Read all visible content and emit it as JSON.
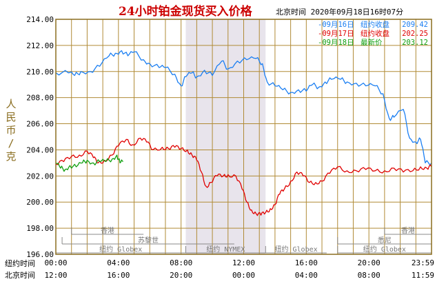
{
  "chart_data": {
    "type": "line",
    "title": "24小时铂金现货买入价格",
    "subtitle": "北京时间  2020年09月18日16时07分",
    "ylabel": "人民币/克",
    "ylim": [
      196,
      214
    ],
    "yticks": [
      "214.00",
      "212.00",
      "210.00",
      "208.00",
      "206.00",
      "204.00",
      "202.00",
      "200.00",
      "198.00",
      "196.00"
    ],
    "x_range_hours": [
      0,
      24
    ],
    "x_row_labels": [
      "纽约时间",
      "北京时间"
    ],
    "x_ticks_ny": [
      "00:00",
      "04:00",
      "08:00",
      "12:00",
      "16:00",
      "20:00",
      "23:59"
    ],
    "x_ticks_bj": [
      "12:00",
      "16:00",
      "20:00",
      "00:00",
      "04:00",
      "08:00",
      "11:59"
    ],
    "highlight_band_hours": [
      8.3,
      13.4
    ],
    "colors": {
      "plot_border": "#8a6d1f",
      "grid": "#b08a35",
      "band": "#e8e4ec",
      "title": "#cc0000",
      "axis_text": "#000000",
      "ylabel": "#8a6d1f"
    },
    "legend": [
      {
        "label": "09月16日",
        "desc": "纽约收盘",
        "value": "209.42",
        "color": "#1a7ef2"
      },
      {
        "label": "09月17日",
        "desc": "纽约收盘",
        "value": "202.25",
        "color": "#e00000"
      },
      {
        "label": "09月18日",
        "desc": "最新价",
        "value": "203.12",
        "color": "#10a010"
      }
    ],
    "markets": [
      {
        "name": "香港",
        "start": 1.0,
        "end": 5.6,
        "row": 0
      },
      {
        "name": "香港",
        "start": 21.0,
        "end": 24.0,
        "row": 0
      },
      {
        "name": "苏黎世",
        "start": 0.4,
        "end": 11.4,
        "row": 1
      },
      {
        "name": "悉尼",
        "start": 18.0,
        "end": 24.0,
        "row": 1
      },
      {
        "name": "纽约 Globex",
        "start": 0.0,
        "end": 8.3,
        "row": 2
      },
      {
        "name": "纽约 NYMEX",
        "start": 8.3,
        "end": 13.4,
        "row": 2
      },
      {
        "name": "纽约 Globex",
        "start": 13.4,
        "end": 17.3,
        "row": 2
      },
      {
        "name": "纽约 Globex",
        "start": 18.0,
        "end": 24.0,
        "row": 2
      }
    ],
    "series": [
      {
        "name": "09月16日",
        "color": "#1a7ef2",
        "points": [
          [
            0.0,
            209.9
          ],
          [
            0.8,
            209.9
          ],
          [
            1.2,
            209.7
          ],
          [
            1.6,
            210.0
          ],
          [
            2.2,
            210.0
          ],
          [
            2.8,
            210.4
          ],
          [
            3.4,
            211.2
          ],
          [
            3.8,
            211.4
          ],
          [
            4.2,
            211.6
          ],
          [
            4.6,
            211.2
          ],
          [
            5.0,
            211.5
          ],
          [
            5.6,
            210.9
          ],
          [
            6.0,
            210.6
          ],
          [
            6.6,
            210.3
          ],
          [
            7.0,
            210.3
          ],
          [
            7.6,
            209.8
          ],
          [
            8.0,
            208.9
          ],
          [
            8.3,
            209.6
          ],
          [
            8.7,
            209.9
          ],
          [
            9.0,
            209.6
          ],
          [
            9.5,
            210.1
          ],
          [
            10.0,
            209.7
          ],
          [
            10.6,
            210.8
          ],
          [
            11.0,
            210.2
          ],
          [
            11.6,
            210.8
          ],
          [
            12.2,
            210.9
          ],
          [
            12.8,
            211.0
          ],
          [
            13.2,
            210.6
          ],
          [
            13.5,
            209.2
          ],
          [
            14.0,
            208.9
          ],
          [
            14.5,
            208.6
          ],
          [
            15.0,
            208.4
          ],
          [
            15.5,
            208.6
          ],
          [
            16.0,
            208.5
          ],
          [
            16.4,
            209.0
          ],
          [
            16.8,
            208.8
          ],
          [
            17.2,
            209.2
          ],
          [
            17.6,
            209.4
          ],
          [
            18.2,
            209.4
          ],
          [
            18.6,
            209.2
          ],
          [
            19.2,
            209.1
          ],
          [
            19.8,
            208.9
          ],
          [
            20.4,
            208.9
          ],
          [
            20.9,
            208.3
          ],
          [
            21.3,
            206.4
          ],
          [
            21.6,
            206.5
          ],
          [
            22.2,
            207.1
          ],
          [
            22.6,
            204.9
          ],
          [
            23.0,
            204.6
          ],
          [
            23.3,
            204.8
          ],
          [
            23.6,
            203.0
          ],
          [
            24.0,
            203.0
          ]
        ]
      },
      {
        "name": "09月17日",
        "color": "#e00000",
        "points": [
          [
            0.0,
            202.9
          ],
          [
            0.5,
            203.1
          ],
          [
            1.0,
            203.5
          ],
          [
            1.5,
            203.6
          ],
          [
            2.0,
            203.9
          ],
          [
            2.4,
            203.4
          ],
          [
            2.7,
            203.0
          ],
          [
            3.1,
            203.2
          ],
          [
            3.6,
            203.6
          ],
          [
            4.0,
            204.3
          ],
          [
            4.5,
            204.8
          ],
          [
            4.9,
            204.4
          ],
          [
            5.4,
            204.9
          ],
          [
            5.8,
            204.6
          ],
          [
            6.2,
            204.0
          ],
          [
            6.8,
            204.2
          ],
          [
            7.2,
            204.1
          ],
          [
            7.6,
            204.2
          ],
          [
            8.0,
            204.1
          ],
          [
            8.4,
            204.0
          ],
          [
            8.7,
            203.6
          ],
          [
            9.0,
            203.2
          ],
          [
            9.3,
            202.3
          ],
          [
            9.6,
            201.2
          ],
          [
            9.9,
            201.5
          ],
          [
            10.3,
            202.0
          ],
          [
            10.7,
            202.0
          ],
          [
            11.0,
            202.1
          ],
          [
            11.5,
            202.0
          ],
          [
            11.9,
            201.0
          ],
          [
            12.2,
            200.0
          ],
          [
            12.5,
            199.4
          ],
          [
            12.8,
            199.1
          ],
          [
            13.1,
            199.0
          ],
          [
            13.4,
            199.2
          ],
          [
            13.7,
            199.5
          ],
          [
            14.0,
            199.8
          ],
          [
            14.3,
            200.6
          ],
          [
            14.6,
            201.0
          ],
          [
            15.0,
            201.6
          ],
          [
            15.4,
            202.3
          ],
          [
            15.8,
            202.0
          ],
          [
            16.2,
            201.5
          ],
          [
            16.6,
            201.5
          ],
          [
            17.0,
            201.6
          ],
          [
            17.5,
            202.2
          ],
          [
            18.0,
            202.7
          ],
          [
            18.6,
            202.4
          ],
          [
            19.2,
            202.4
          ],
          [
            19.8,
            202.5
          ],
          [
            20.4,
            202.4
          ],
          [
            21.0,
            202.4
          ],
          [
            21.6,
            202.6
          ],
          [
            22.2,
            202.3
          ],
          [
            22.8,
            202.4
          ],
          [
            23.3,
            202.7
          ],
          [
            23.7,
            202.6
          ],
          [
            24.0,
            202.7
          ]
        ]
      },
      {
        "name": "09月18日",
        "color": "#10a010",
        "points": [
          [
            0.0,
            203.0
          ],
          [
            0.3,
            202.6
          ],
          [
            0.6,
            202.5
          ],
          [
            0.9,
            202.8
          ],
          [
            1.3,
            202.7
          ],
          [
            1.7,
            203.0
          ],
          [
            2.0,
            203.2
          ],
          [
            2.4,
            203.0
          ],
          [
            2.8,
            203.1
          ],
          [
            3.2,
            203.1
          ],
          [
            3.6,
            203.3
          ],
          [
            3.9,
            203.6
          ],
          [
            4.1,
            203.0
          ],
          [
            4.3,
            203.1
          ]
        ]
      }
    ]
  }
}
